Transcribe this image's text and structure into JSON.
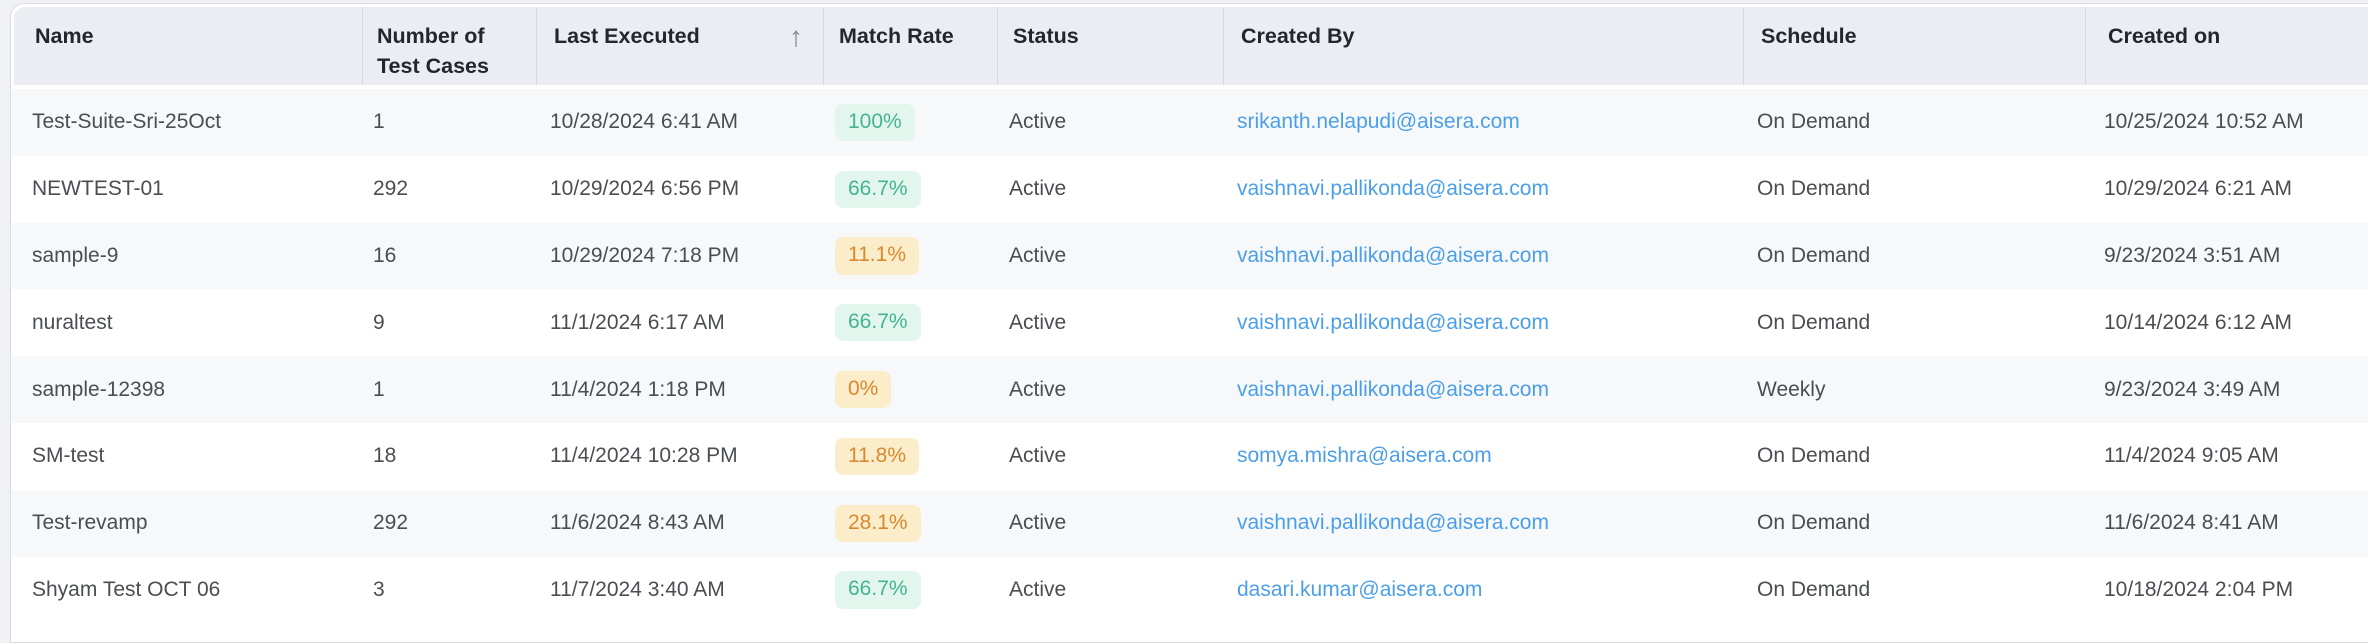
{
  "table": {
    "sort_icon": "↑",
    "sorted_column": "Last Executed",
    "sort_direction": "ascending"
  },
  "columns": [
    {
      "key": "name",
      "label": "Name"
    },
    {
      "key": "test_cases",
      "label": "Number of Test Cases"
    },
    {
      "key": "last_executed",
      "label": "Last Executed"
    },
    {
      "key": "match_rate",
      "label": "Match Rate"
    },
    {
      "key": "status",
      "label": "Status"
    },
    {
      "key": "created_by",
      "label": "Created By"
    },
    {
      "key": "schedule",
      "label": "Schedule"
    },
    {
      "key": "created_on",
      "label": "Created on"
    }
  ],
  "rows": [
    {
      "name": "Test-Suite-Sri-25Oct",
      "test_cases": "1",
      "last_executed": "10/28/2024 6:41 AM",
      "match_rate": "100%",
      "match_tone": "green",
      "status": "Active",
      "created_by": "srikanth.nelapudi@aisera.com",
      "schedule": "On Demand",
      "created_on": "10/25/2024 10:52 AM"
    },
    {
      "name": "NEWTEST-01",
      "test_cases": "292",
      "last_executed": "10/29/2024 6:56 PM",
      "match_rate": "66.7%",
      "match_tone": "green",
      "status": "Active",
      "created_by": "vaishnavi.pallikonda@aisera.com",
      "schedule": "On Demand",
      "created_on": "10/29/2024 6:21 AM"
    },
    {
      "name": "sample-9",
      "test_cases": "16",
      "last_executed": "10/29/2024 7:18 PM",
      "match_rate": "11.1%",
      "match_tone": "orange",
      "status": "Active",
      "created_by": "vaishnavi.pallikonda@aisera.com",
      "schedule": "On Demand",
      "created_on": "9/23/2024 3:51 AM"
    },
    {
      "name": "nuraltest",
      "test_cases": "9",
      "last_executed": "11/1/2024 6:17 AM",
      "match_rate": "66.7%",
      "match_tone": "green",
      "status": "Active",
      "created_by": "vaishnavi.pallikonda@aisera.com",
      "schedule": "On Demand",
      "created_on": "10/14/2024 6:12 AM"
    },
    {
      "name": "sample-12398",
      "test_cases": "1",
      "last_executed": "11/4/2024 1:18 PM",
      "match_rate": "0%",
      "match_tone": "orange",
      "status": "Active",
      "created_by": "vaishnavi.pallikonda@aisera.com",
      "schedule": "Weekly",
      "created_on": "9/23/2024 3:49 AM"
    },
    {
      "name": "SM-test",
      "test_cases": "18",
      "last_executed": "11/4/2024 10:28 PM",
      "match_rate": "11.8%",
      "match_tone": "orange",
      "status": "Active",
      "created_by": "somya.mishra@aisera.com",
      "schedule": "On Demand",
      "created_on": "11/4/2024 9:05 AM"
    },
    {
      "name": "Test-revamp",
      "test_cases": "292",
      "last_executed": "11/6/2024 8:43 AM",
      "match_rate": "28.1%",
      "match_tone": "orange",
      "status": "Active",
      "created_by": "vaishnavi.pallikonda@aisera.com",
      "schedule": "On Demand",
      "created_on": "11/6/2024 8:41 AM"
    },
    {
      "name": "Shyam Test OCT 06",
      "test_cases": "3",
      "last_executed": "11/7/2024 3:40 AM",
      "match_rate": "66.7%",
      "match_tone": "green",
      "status": "Active",
      "created_by": "dasari.kumar@aisera.com",
      "schedule": "On Demand",
      "created_on": "10/18/2024 2:04 PM"
    }
  ],
  "colors": {
    "link_blue": "#4b9fe8",
    "badge_green_bg": "#e3f6ee",
    "badge_green_text": "#45b492",
    "badge_orange_bg": "#fbedca",
    "badge_orange_text": "#d8892e",
    "header_bg": "#ebedf2"
  }
}
